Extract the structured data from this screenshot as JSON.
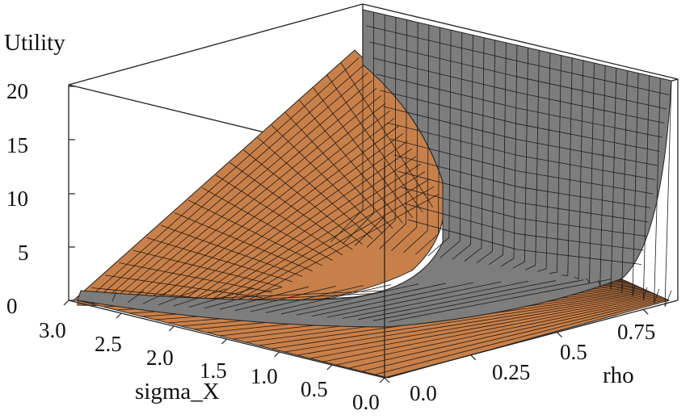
{
  "chart_data": {
    "type": "surface",
    "z_axis": {
      "label": "Utility",
      "ticks": [
        0,
        5,
        10,
        15,
        20
      ],
      "tick_labels": [
        "0",
        "5",
        "10",
        "15",
        "20"
      ],
      "range": [
        0,
        20
      ]
    },
    "x_axis": {
      "label": "sigma_X",
      "ticks": [
        3.0,
        2.5,
        2.0,
        1.5,
        1.0,
        0.5,
        0.0
      ],
      "tick_labels": [
        "3.0",
        "2.5",
        "2.0",
        "1.5",
        "1.0",
        "0.5",
        "0.0"
      ],
      "range": [
        0,
        3
      ]
    },
    "y_axis": {
      "label": "rho",
      "ticks": [
        0.0,
        0.25,
        0.5,
        0.75
      ],
      "tick_labels": [
        "0.0",
        "0.25",
        "0.5",
        "0.75"
      ],
      "range": [
        0,
        0.85
      ]
    },
    "series": [
      {
        "color": "#c8804a",
        "values_z_at_rho0": [
          {
            "sigma_X": 0.0,
            "z": 0.0
          },
          {
            "sigma_X": 0.5,
            "z": 0.5
          },
          {
            "sigma_X": 1.0,
            "z": 1.5
          },
          {
            "sigma_X": 1.5,
            "z": 3.5
          },
          {
            "sigma_X": 2.0,
            "z": 6.5
          },
          {
            "sigma_X": 2.5,
            "z": 11.0
          },
          {
            "sigma_X": 3.0,
            "z": 20.5
          }
        ]
      },
      {
        "color": "#808080",
        "values_z_at_sigma3": [
          {
            "rho": 0.0,
            "z": 0.3
          },
          {
            "rho": 0.25,
            "z": 0.6
          },
          {
            "rho": 0.5,
            "z": 1.5
          },
          {
            "rho": 0.75,
            "z": 6.0
          },
          {
            "rho": 0.85,
            "z": 20.5
          }
        ]
      }
    ],
    "grid": false,
    "box": true
  }
}
